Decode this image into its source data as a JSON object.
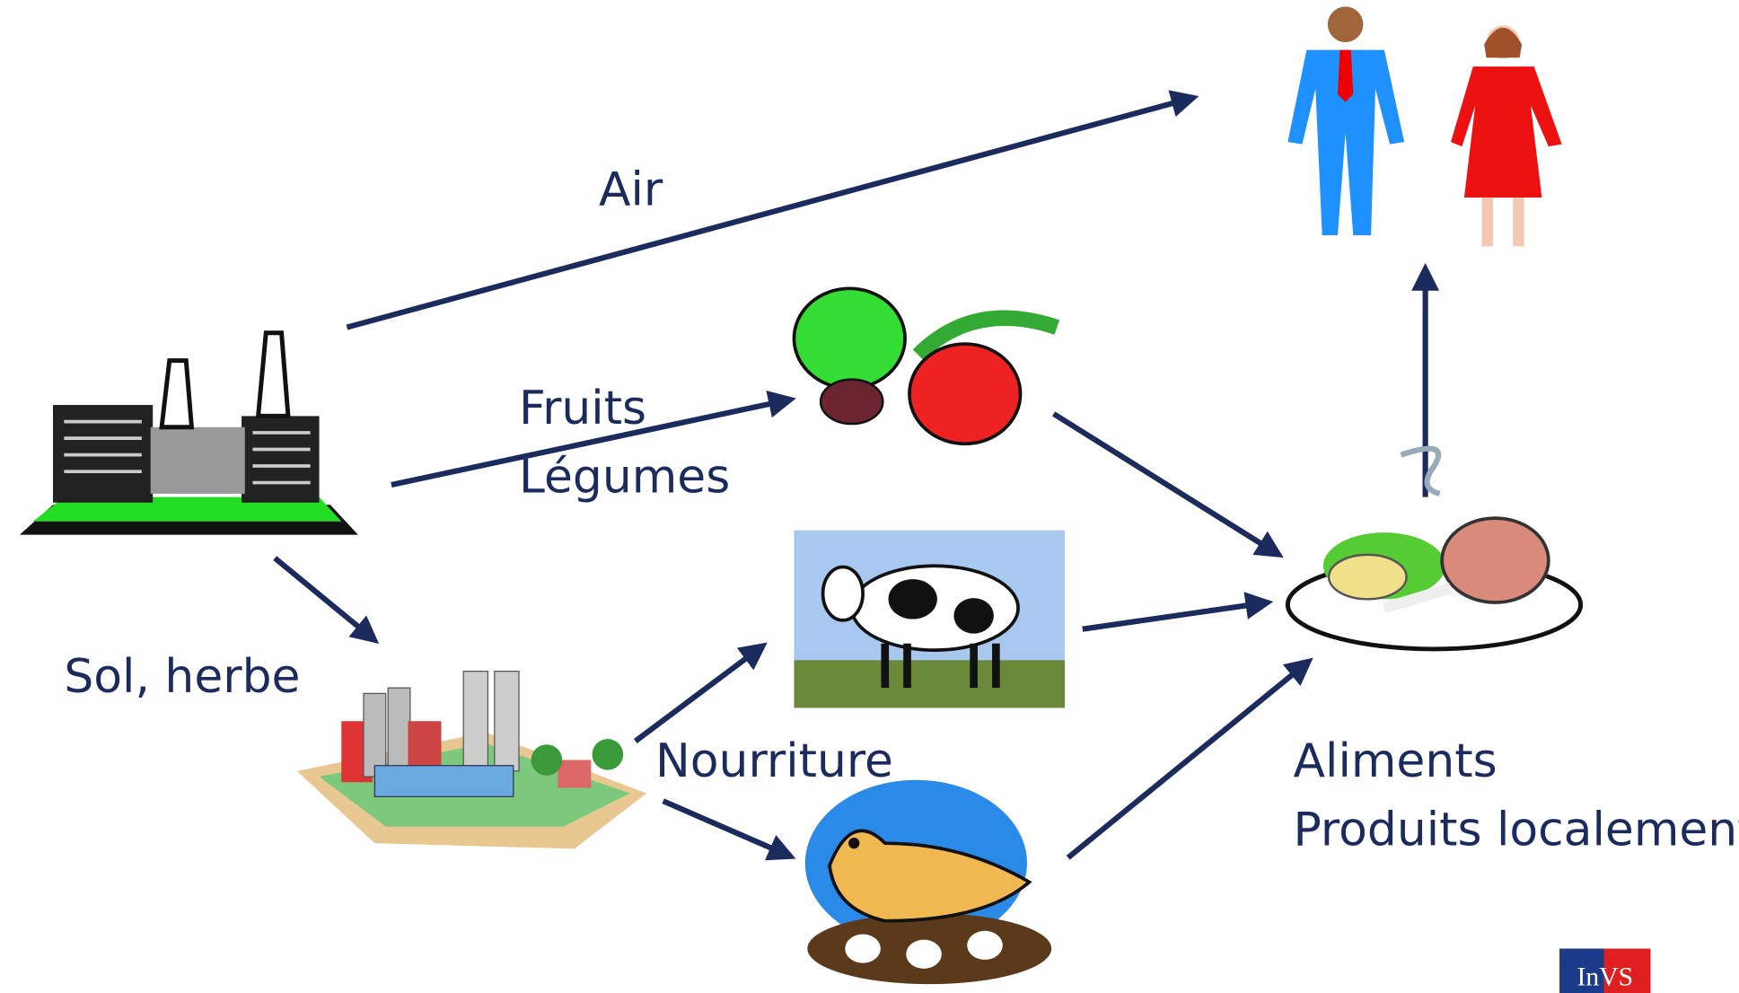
{
  "labels": {
    "air": "Air",
    "fruits": "Fruits",
    "legumes": "Légumes",
    "sol": "Sol, herbe",
    "nourriture": "Nourriture",
    "aliments": "Aliments",
    "produits": "Produits localement"
  },
  "logo": "InVS"
}
